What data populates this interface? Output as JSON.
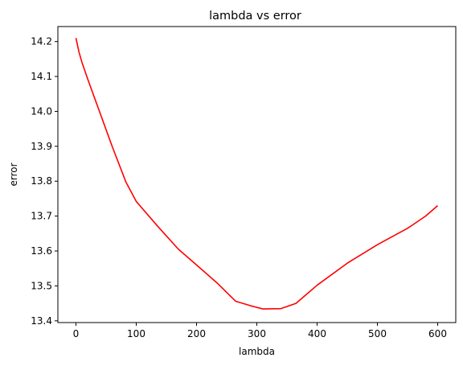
{
  "chart_data": {
    "type": "line",
    "title": "lambda vs error",
    "xlabel": "lambda",
    "ylabel": "error",
    "xlim": [
      -30,
      630
    ],
    "ylim": [
      13.395,
      14.243
    ],
    "xticks": [
      0,
      100,
      200,
      300,
      400,
      500,
      600
    ],
    "yticks": [
      13.4,
      13.5,
      13.6,
      13.7,
      13.8,
      13.9,
      14.0,
      14.1,
      14.2
    ],
    "xtick_labels": [
      "0",
      "100",
      "200",
      "300",
      "400",
      "500",
      "600"
    ],
    "ytick_labels": [
      "13.4",
      "13.5",
      "13.6",
      "13.7",
      "13.8",
      "13.9",
      "14.0",
      "14.1",
      "14.2"
    ],
    "grid": false,
    "series": [
      {
        "color": "#ff0000",
        "x": [
          0,
          5,
          10,
          15,
          20,
          40,
          60,
          83,
          100,
          135,
          170,
          200,
          235,
          265,
          290,
          310,
          340,
          365,
          400,
          450,
          500,
          550,
          580,
          600
        ],
        "y": [
          14.21,
          14.17,
          14.14,
          14.115,
          14.09,
          13.995,
          13.9,
          13.797,
          13.742,
          13.672,
          13.605,
          13.56,
          13.507,
          13.456,
          13.443,
          13.434,
          13.435,
          13.45,
          13.502,
          13.565,
          13.618,
          13.665,
          13.7,
          13.73
        ]
      }
    ]
  }
}
